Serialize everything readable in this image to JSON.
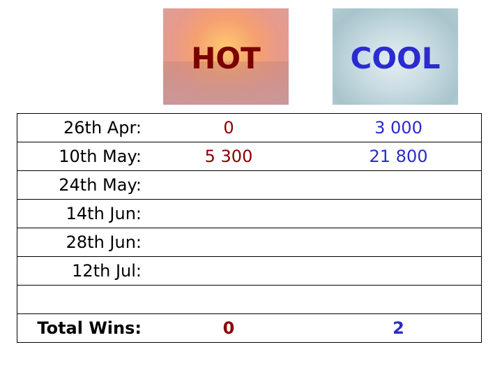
{
  "headers": {
    "hot": "HOT",
    "cool": "COOL"
  },
  "colors": {
    "hot": "#8b0000",
    "cool": "#2b2bc8"
  },
  "rows": [
    {
      "label": "26th Apr:",
      "hot": "0",
      "cool": "3 000"
    },
    {
      "label": "10th May:",
      "hot": "5 300",
      "cool": "21 800"
    },
    {
      "label": "24th May:",
      "hot": "",
      "cool": ""
    },
    {
      "label": "14th Jun:",
      "hot": "",
      "cool": ""
    },
    {
      "label": "28th Jun:",
      "hot": "",
      "cool": ""
    },
    {
      "label": "12th Jul:",
      "hot": "",
      "cool": ""
    },
    {
      "label": "",
      "hot": "",
      "cool": ""
    }
  ],
  "total": {
    "label": "Total Wins:",
    "hot": "0",
    "cool": "2"
  }
}
